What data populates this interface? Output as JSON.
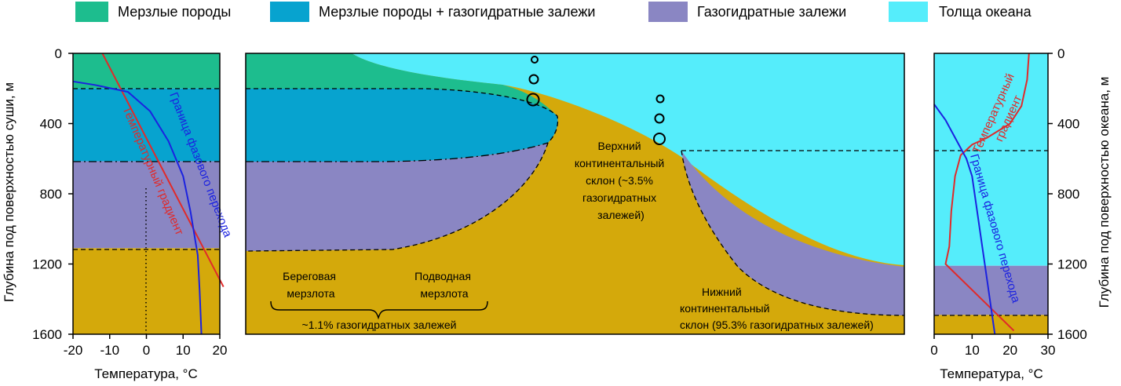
{
  "legend": [
    {
      "label": "Мерзлые породы",
      "color": "#1dbd8e"
    },
    {
      "label": "Мерзлые породы + газогидратные залежи",
      "color": "#07a3cf"
    },
    {
      "label": "Газогидратные залежи",
      "color": "#8a86c3"
    },
    {
      "label": "Толща океана",
      "color": "#55edfb"
    }
  ],
  "colors": {
    "sediment": "#d4a90b",
    "permafrost": "#1dbd8e",
    "permafrost_hydrate": "#07a3cf",
    "hydrate": "#8a86c3",
    "ocean": "#55edfb",
    "temp_gradient": "#e02a2a",
    "phase_boundary": "#1b22e0"
  },
  "left_panel": {
    "ylabel": "Глубина под поверхностью суши, м",
    "xlabel": "Температура, °C",
    "y_ticks": [
      "0",
      "400",
      "800",
      "1200",
      "1600"
    ],
    "x_ticks": [
      "-20",
      "-10",
      "0",
      "10",
      "20"
    ],
    "xlim": [
      -20,
      20
    ],
    "ylim": [
      0,
      1600
    ],
    "layers": [
      {
        "name": "permafrost",
        "from": 0,
        "to": 200
      },
      {
        "name": "permafrost_hydrate",
        "from": 200,
        "to": 615
      },
      {
        "name": "hydrate",
        "from": 615,
        "to": 1110
      },
      {
        "name": "sediment",
        "from": 1110,
        "to": 1600
      }
    ],
    "temp_curve_label": "Температурный градиент",
    "phase_curve_label": "Граница фазового перехода",
    "temp_curve": [
      [
        -12,
        0
      ],
      [
        21,
        1330
      ]
    ],
    "phase_curve": [
      [
        -20,
        160
      ],
      [
        -14,
        180
      ],
      [
        -5,
        220
      ],
      [
        1,
        330
      ],
      [
        6,
        500
      ],
      [
        10,
        700
      ],
      [
        12,
        900
      ],
      [
        14,
        1150
      ],
      [
        14.5,
        1350
      ],
      [
        15,
        1600
      ]
    ]
  },
  "center_panel": {
    "onshore_label": "Береговая мерзлота",
    "subsea_label": "Подводная мерзлота",
    "permafrost_share": "~1.1% газогидратных залежей",
    "upper_slope_label": "Верхний континентальный склон (~3.5% газогидратных залежей)",
    "lower_slope_label": "Нижний континентальный склон (95.3% газогидратных залежей)"
  },
  "right_panel": {
    "ylabel": "Глубина под поверхностью океана, м",
    "xlabel": "Температура, °C",
    "y_ticks": [
      "0",
      "400",
      "800",
      "1200",
      "1600"
    ],
    "x_ticks": [
      "0",
      "10",
      "20",
      "30"
    ],
    "xlim": [
      0,
      30
    ],
    "ylim": [
      0,
      1600
    ],
    "layers": [
      {
        "name": "ocean",
        "from": 0,
        "to": 1210
      },
      {
        "name": "hydrate",
        "from": 1210,
        "to": 1490
      },
      {
        "name": "sediment",
        "from": 1490,
        "to": 1600
      }
    ],
    "temp_curve_label": "Температурный градиент",
    "phase_curve_label": "Граница фазового перехода",
    "temp_curve": [
      [
        25,
        0
      ],
      [
        24.5,
        150
      ],
      [
        23,
        300
      ],
      [
        20,
        400
      ],
      [
        14,
        480
      ],
      [
        10,
        520
      ],
      [
        7,
        580
      ],
      [
        5.5,
        700
      ],
      [
        4.5,
        900
      ],
      [
        4,
        1100
      ],
      [
        3,
        1200
      ],
      [
        21,
        1580
      ]
    ],
    "phase_curve": [
      [
        0,
        290
      ],
      [
        3,
        380
      ],
      [
        6,
        500
      ],
      [
        8.5,
        600
      ],
      [
        10,
        700
      ],
      [
        12,
        1000
      ],
      [
        14,
        1300
      ],
      [
        16,
        1600
      ]
    ]
  }
}
